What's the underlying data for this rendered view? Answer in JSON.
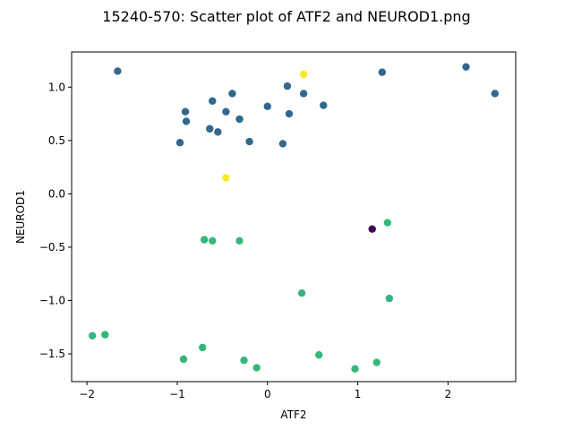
{
  "chart_data": {
    "type": "scatter",
    "title": "15240-570: Scatter plot of ATF2 and NEUROD1.png",
    "xlabel": "ATF2",
    "ylabel": "NEUROD1",
    "xlim": [
      -2.17,
      2.75
    ],
    "ylim": [
      -1.76,
      1.33
    ],
    "xticks": [
      -2,
      -1,
      0,
      1,
      2
    ],
    "xtick_labels": [
      "−2",
      "−1",
      "0",
      "1",
      "2"
    ],
    "yticks": [
      -1.5,
      -1.0,
      -0.5,
      0.0,
      0.5,
      1.0
    ],
    "ytick_labels": [
      "−1.5",
      "−1.0",
      "−0.5",
      "0.0",
      "0.5",
      "1.0"
    ],
    "grid": false,
    "groups": [
      {
        "color": "#31688e",
        "points": [
          [
            -1.66,
            1.15
          ],
          [
            -0.39,
            0.94
          ],
          [
            0.22,
            1.01
          ],
          [
            0.4,
            0.94
          ],
          [
            1.27,
            1.14
          ],
          [
            2.2,
            1.19
          ],
          [
            2.52,
            0.94
          ],
          [
            -0.61,
            0.87
          ],
          [
            -0.91,
            0.77
          ],
          [
            -0.9,
            0.68
          ],
          [
            -0.46,
            0.77
          ],
          [
            -0.31,
            0.7
          ],
          [
            0.24,
            0.75
          ],
          [
            0.0,
            0.82
          ],
          [
            0.62,
            0.83
          ],
          [
            -0.64,
            0.61
          ],
          [
            -0.55,
            0.58
          ],
          [
            -0.97,
            0.48
          ],
          [
            -0.2,
            0.49
          ],
          [
            0.17,
            0.47
          ]
        ]
      },
      {
        "color": "#fde725",
        "points": [
          [
            0.4,
            1.12
          ],
          [
            -0.46,
            0.15
          ]
        ]
      },
      {
        "color": "#440154",
        "points": [
          [
            1.16,
            -0.33
          ]
        ]
      },
      {
        "color": "#35b779",
        "points": [
          [
            1.33,
            -0.27
          ],
          [
            -0.7,
            -0.43
          ],
          [
            -0.61,
            -0.44
          ],
          [
            -0.31,
            -0.44
          ],
          [
            0.38,
            -0.93
          ],
          [
            1.35,
            -0.98
          ],
          [
            -1.94,
            -1.33
          ],
          [
            -1.8,
            -1.32
          ],
          [
            -0.72,
            -1.44
          ],
          [
            -0.93,
            -1.55
          ],
          [
            -0.26,
            -1.56
          ],
          [
            -0.12,
            -1.63
          ],
          [
            0.57,
            -1.51
          ],
          [
            0.97,
            -1.64
          ],
          [
            1.21,
            -1.58
          ]
        ]
      }
    ]
  }
}
